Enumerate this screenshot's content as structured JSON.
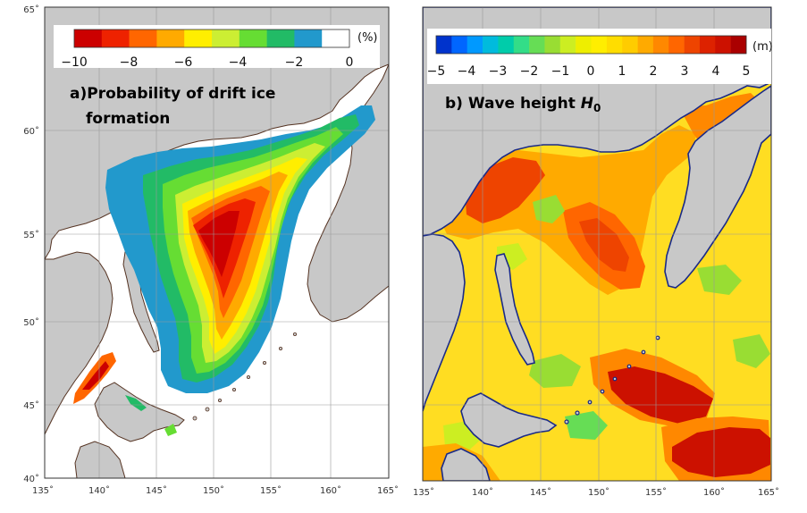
{
  "panel_a": {
    "title_line1": "a)Probability of drift ice",
    "title_line2": "formation",
    "colorbar": {
      "unit": "(%)",
      "tick_labels": [
        "−10",
        "−8",
        "−6",
        "−4",
        "−2",
        "0"
      ],
      "colors": [
        "#cc0000",
        "#ee2200",
        "#ff6600",
        "#ffaa00",
        "#ffee00",
        "#ccee33",
        "#66dd33",
        "#22bb66",
        "#2299cc",
        "#ffffff"
      ]
    },
    "lat_labels": [
      "65˚",
      "60˚",
      "55˚",
      "50˚",
      "45˚",
      "40˚"
    ],
    "lon_labels": [
      "135˚",
      "140˚",
      "145˚",
      "150˚",
      "155˚",
      "160˚",
      "165˚"
    ]
  },
  "panel_b": {
    "title_prefix": "b) Wave height ",
    "title_symbol": "H",
    "title_subscript": "0",
    "colorbar": {
      "unit": "(m)",
      "tick_labels": [
        "−5",
        "−4",
        "−3",
        "−2",
        "−1",
        "0",
        "1",
        "2",
        "3",
        "4",
        "5"
      ],
      "colors": [
        "#0033cc",
        "#0066ff",
        "#0099ff",
        "#00bbdd",
        "#00ccaa",
        "#33dd88",
        "#66dd55",
        "#99dd33",
        "#ccee22",
        "#eeee00",
        "#ffee00",
        "#ffdd00",
        "#ffcc00",
        "#ffaa00",
        "#ff8800",
        "#ff6600",
        "#ee4400",
        "#dd2200",
        "#cc1100",
        "#aa0000"
      ]
    },
    "lon_labels": [
      "135˚",
      "140˚",
      "145˚",
      "150˚",
      "155˚",
      "160˚",
      "165˚"
    ]
  },
  "colors": {
    "land": "#c8c8c8",
    "ocean": "#ffffff",
    "coast": "#553322",
    "grid": "#999999"
  }
}
